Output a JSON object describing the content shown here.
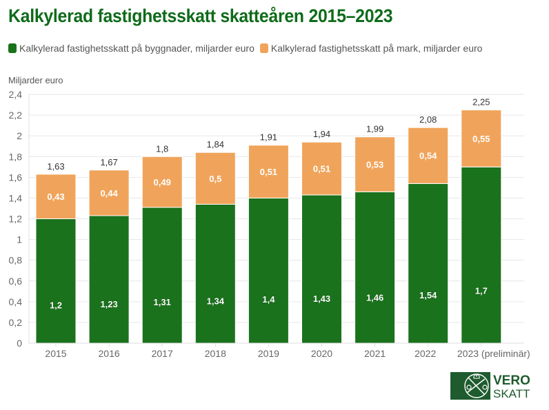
{
  "chart_data": {
    "type": "bar",
    "stacked": true,
    "title": "Kalkylerad fastighetsskatt skatteåren 2015–2023",
    "ylabel": "Miljarder euro",
    "xlabel": "",
    "ylim": [
      0,
      2.4
    ],
    "yticks": [
      0,
      0.2,
      0.4,
      0.6,
      0.8,
      1,
      1.2,
      1.4,
      1.6,
      1.8,
      2,
      2.2,
      2.4
    ],
    "ytick_labels": [
      "0",
      "0,2",
      "0,4",
      "0,6",
      "0,8",
      "1",
      "1,2",
      "1,4",
      "1,6",
      "1,8",
      "2",
      "2,2",
      "2,4"
    ],
    "grid": true,
    "legend_position": "top",
    "categories": [
      "2015",
      "2016",
      "2017",
      "2018",
      "2019",
      "2020",
      "2021",
      "2022",
      "2023 (preliminär)"
    ],
    "series": [
      {
        "name": "Kalkylerad fastighetsskatt på byggnader, miljarder euro",
        "color": "#1a721c",
        "values": [
          1.2,
          1.23,
          1.31,
          1.34,
          1.4,
          1.43,
          1.46,
          1.54,
          1.7
        ],
        "labels": [
          "1,2",
          "1,23",
          "1,31",
          "1,34",
          "1,4",
          "1,43",
          "1,46",
          "1,54",
          "1,7"
        ]
      },
      {
        "name": "Kalkylerad fastighetsskatt på mark, miljarder euro",
        "color": "#f0a45b",
        "values": [
          0.43,
          0.44,
          0.49,
          0.5,
          0.51,
          0.51,
          0.53,
          0.54,
          0.55
        ],
        "labels": [
          "0,43",
          "0,44",
          "0,49",
          "0,5",
          "0,51",
          "0,51",
          "0,53",
          "0,54",
          "0,55"
        ]
      }
    ],
    "totals": [
      1.63,
      1.67,
      1.8,
      1.84,
      1.91,
      1.94,
      1.99,
      2.08,
      2.25
    ],
    "total_labels": [
      "1,63",
      "1,67",
      "1,8",
      "1,84",
      "1,91",
      "1,94",
      "1,99",
      "2,08",
      "2,25"
    ]
  },
  "logo": {
    "line1": "VERO",
    "line2": "SKATT",
    "color": "#1e5b2e"
  }
}
